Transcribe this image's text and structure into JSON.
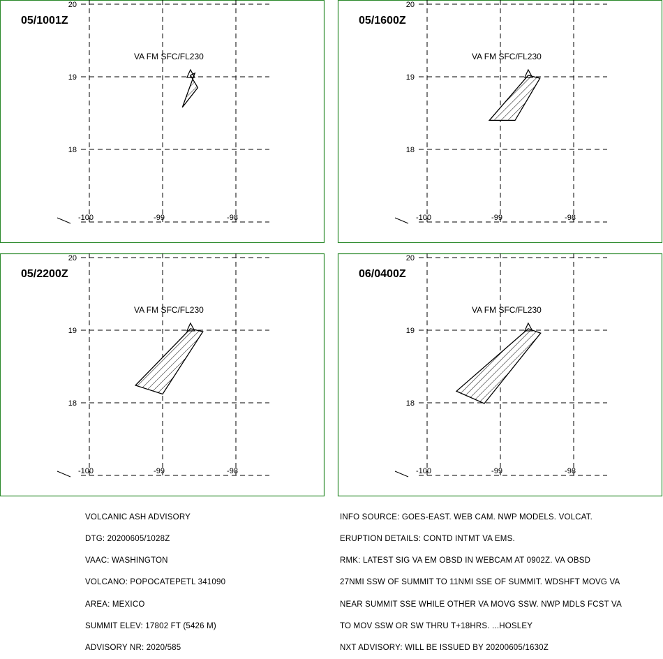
{
  "panels": [
    {
      "time": "05/1001Z",
      "va_label": "VA FM SFC/FL230",
      "polygon": [
        [
          -98.62,
          19.02
        ],
        [
          -98.52,
          18.85
        ],
        [
          -98.73,
          18.58
        ],
        [
          -98.56,
          19.05
        ]
      ]
    },
    {
      "time": "05/1600Z",
      "va_label": "VA FM SFC/FL230",
      "polygon": [
        [
          -98.62,
          19.02
        ],
        [
          -98.46,
          18.98
        ],
        [
          -98.8,
          18.4
        ],
        [
          -99.15,
          18.4
        ]
      ]
    },
    {
      "time": "05/2200Z",
      "va_label": "VA FM SFC/FL230",
      "polygon": [
        [
          -98.62,
          19.02
        ],
        [
          -98.45,
          18.98
        ],
        [
          -99.0,
          18.12
        ],
        [
          -99.37,
          18.24
        ]
      ]
    },
    {
      "time": "06/0400Z",
      "va_label": "VA FM SFC/FL230",
      "polygon": [
        [
          -98.62,
          19.02
        ],
        [
          -98.45,
          18.96
        ],
        [
          -99.22,
          17.99
        ],
        [
          -99.6,
          18.16
        ]
      ]
    }
  ],
  "axes": {
    "lat_ticks": [
      "20",
      "19",
      "18"
    ],
    "lon_ticks": [
      "-100",
      "-99",
      "-98"
    ]
  },
  "volcano_marker": "volcano-triangle-icon",
  "colors": {
    "border": "#2e8b2e",
    "hatch": "#000000"
  },
  "advisory_left": [
    "VOLCANIC ASH ADVISORY",
    "DTG: 20200605/1028Z",
    "VAAC: WASHINGTON",
    "VOLCANO: POPOCATEPETL 341090",
    "AREA: MEXICO",
    "SUMMIT ELEV: 17802 FT (5426 M)",
    "ADVISORY NR: 2020/585"
  ],
  "advisory_right": [
    "INFO SOURCE: GOES-EAST. WEB CAM. NWP MODELS. VOLCAT.",
    "ERUPTION DETAILS: CONTD INTMT VA EMS.",
    "RMK: LATEST SIG VA EM OBSD IN WEBCAM AT 0902Z. VA OBSD",
    "27NMI SSW OF SUMMIT TO 11NMI SSE OF SUMMIT. WDSHFT MOVG VA",
    "NEAR SUMMIT SSE WHILE OTHER VA MOVG SSW. NWP MDLS FCST VA",
    "TO MOV SSW OR SW THRU T+18HRS. ...HOSLEY",
    "NXT ADVISORY: WILL BE ISSUED BY 20200605/1630Z"
  ]
}
